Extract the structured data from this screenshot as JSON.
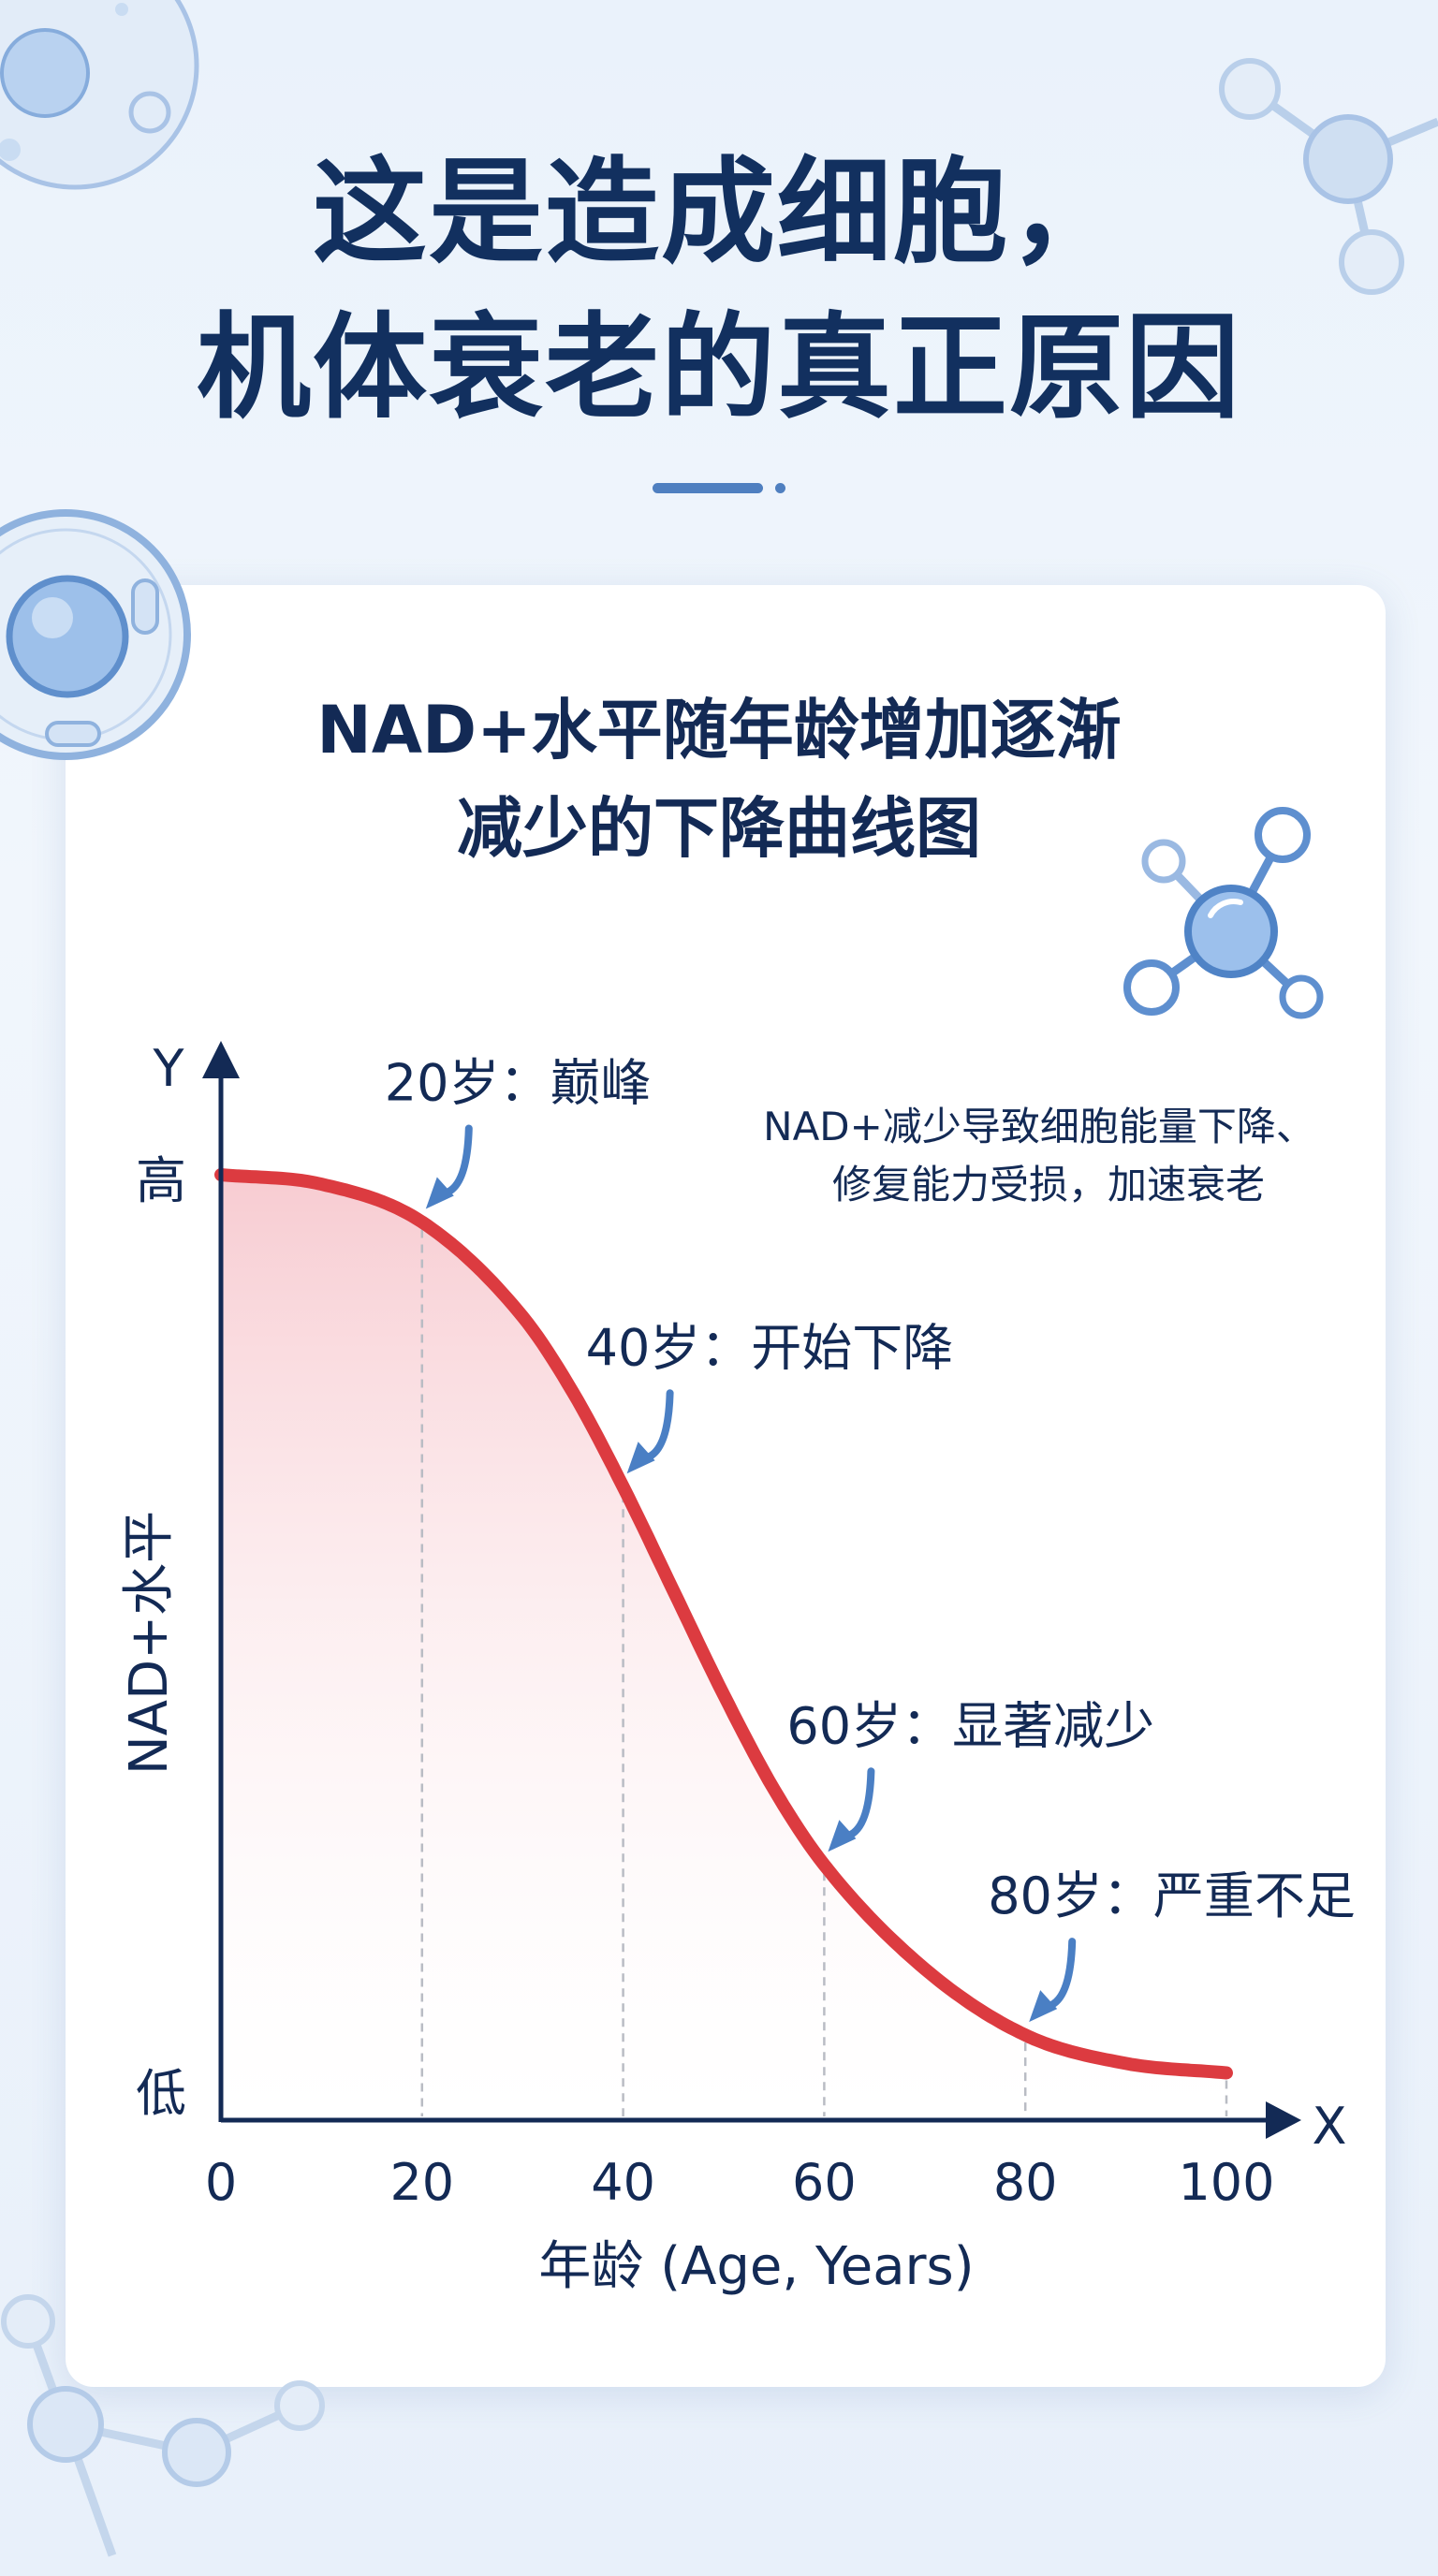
{
  "headline": {
    "line1": "这是造成细胞，",
    "line2": "机体衰老的真正原因"
  },
  "chart_data": {
    "type": "line",
    "title_lines": [
      "NAD+水平随年龄增加逐渐",
      "减少的下降曲线图"
    ],
    "xlabel": "年龄 (Age, Years)",
    "ylabel": "NAD+水平",
    "x_axis_letter": "X",
    "y_axis_letter": "Y",
    "x_ticks": [
      "0",
      "20",
      "40",
      "60",
      "80",
      "100"
    ],
    "y_tick_labels": {
      "high": "高",
      "low": "低"
    },
    "xlim": [
      0,
      100
    ],
    "ylim": [
      0,
      100
    ],
    "series": [
      {
        "x": [
          0,
          10,
          20,
          30,
          35,
          40,
          45,
          50,
          55,
          60,
          70,
          80,
          90,
          100
        ],
        "y": [
          100,
          99,
          95,
          85,
          77,
          67,
          56,
          45,
          35,
          27,
          16,
          9,
          6,
          5
        ]
      }
    ],
    "annotations": [
      {
        "x": 20,
        "text": "20岁：巅峰"
      },
      {
        "x": 40,
        "text": "40岁：开始下降"
      },
      {
        "x": 60,
        "text": "60岁：显著减少"
      },
      {
        "x": 80,
        "text": "80岁：严重不足"
      }
    ],
    "note_lines": [
      "NAD+减少导致细胞能量下降、",
      "修复能力受损，加速衰老"
    ],
    "colors": {
      "curve": "#dc3b40",
      "fill_top": "#f7c9cf",
      "axis": "#132a55",
      "arrow": "#4a7fc4",
      "guide": "#b9bcc4"
    },
    "grid": false,
    "legend": "none"
  }
}
